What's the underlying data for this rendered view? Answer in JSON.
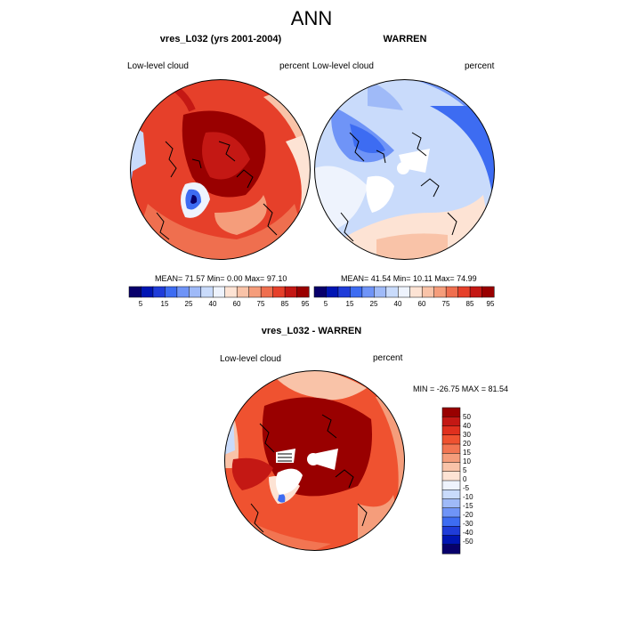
{
  "figure": {
    "title": "ANN"
  },
  "colors": {
    "top_scale": [
      "#08006b",
      "#0015b3",
      "#1f3cd9",
      "#3d6cf2",
      "#6f94f7",
      "#9fbaf8",
      "#c9dbfb",
      "#eef3fd",
      "#fde3d4",
      "#f9c3a8",
      "#f59d7b",
      "#ef6f4f",
      "#e6402a",
      "#c41814",
      "#990000"
    ],
    "diff_scale": [
      "#990000",
      "#c41814",
      "#e0301e",
      "#ef5230",
      "#f27552",
      "#f59d7b",
      "#f9c3a8",
      "#fde3d4",
      "#eef3fd",
      "#c9dbfb",
      "#9fbaf8",
      "#6f94f7",
      "#3d6cf2",
      "#1f3cd9",
      "#0015b3",
      "#08006b"
    ]
  },
  "panels": [
    {
      "title": "vres_L032 (yrs 2001-2004)",
      "left_label": "Low-level cloud",
      "right_label": "percent",
      "stats": "MEAN=  71.57  Min=   0.00  Max=  97.10"
    },
    {
      "title": "WARREN",
      "left_label": "Low-level cloud",
      "right_label": "percent",
      "stats": "MEAN=  41.54  Min=  10.11  Max=  74.99"
    }
  ],
  "top_colorbar": {
    "labels": [
      "5",
      "15",
      "25",
      "40",
      "60",
      "75",
      "85",
      "95"
    ]
  },
  "diff_panel": {
    "title": "vres_L032 - WARREN",
    "left_label": "Low-level cloud",
    "right_label": "percent",
    "stats": "MIN = -26.75 MAX =  81.54",
    "colorbar_labels": [
      "50",
      "40",
      "30",
      "20",
      "15",
      "10",
      "5",
      "0",
      "-5",
      "-10",
      "-15",
      "-20",
      "-30",
      "-40",
      "-50"
    ]
  }
}
